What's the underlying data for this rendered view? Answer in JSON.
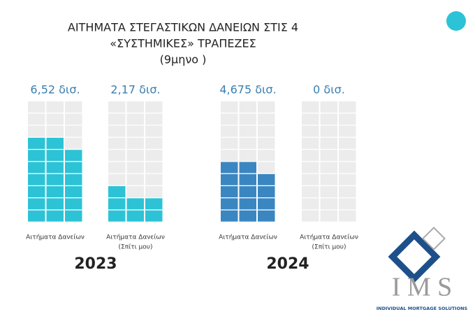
{
  "chart_data": {
    "type": "waffle",
    "title": [
      "ΑΙΤΗΜΑΤΑ ΣΤΕΓΑΣΤΙΚΩΝ ΔΑΝΕΙΩΝ ΣΤΙΣ 4",
      "«ΣΥΣΤΗΜΙΚΕΣ» ΤΡΑΠΕΖΕΣ",
      "(9μηνο )"
    ],
    "categories": [
      [
        "Αιτήματα Δανείων"
      ],
      [
        "Αιτήματα Δανείων",
        "(Σπίτι μου)"
      ]
    ],
    "ylim": [
      0,
      10
    ],
    "series": [
      {
        "name": "2023",
        "color": "#2cc3d6",
        "values": [
          6.52,
          2.17
        ],
        "value_labels": [
          "6,52 δισ.",
          "2,17 δισ."
        ]
      },
      {
        "name": "2024",
        "color": "#3a86c1",
        "values": [
          4.675,
          0
        ],
        "value_labels": [
          "4,675 δισ.",
          "0 δισ."
        ]
      }
    ]
  },
  "logo": {
    "text": "I M S",
    "tagline": "INDIVIDUAL MORTGAGE SOLUTIONS"
  }
}
